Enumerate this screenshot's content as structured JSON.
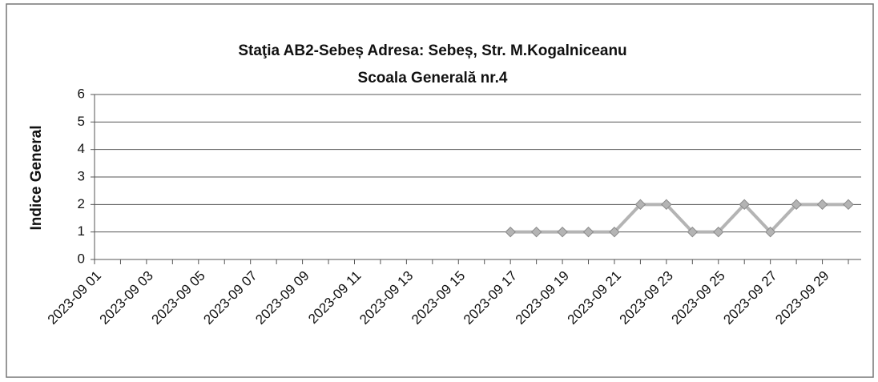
{
  "chart_data": {
    "type": "line",
    "title": [
      "Staţia AB2-Sebeș  Adresa: Sebeș,  Str. M.Kogalniceanu",
      "Scoala Generală nr.4"
    ],
    "y_label": "Indice General",
    "categories": [
      "2023-09 01",
      null,
      "2023-09 03",
      null,
      "2023-09 05",
      null,
      "2023-09 07",
      null,
      "2023-09 09",
      null,
      "2023-09 11",
      null,
      "2023-09 13",
      null,
      "2023-09 15",
      null,
      "2023-09 17",
      null,
      "2023-09 19",
      null,
      "2023-09 21",
      null,
      "2023-09 23",
      null,
      "2023-09 25",
      null,
      "2023-09 27",
      null,
      "2023-09 29",
      null
    ],
    "values": [
      null,
      null,
      null,
      null,
      null,
      null,
      null,
      null,
      null,
      null,
      null,
      null,
      null,
      null,
      null,
      null,
      1,
      1,
      1,
      1,
      1,
      2,
      2,
      1,
      1,
      2,
      1,
      2,
      2,
      2
    ],
    "color": "#b4b4b4",
    "ylim": [
      0,
      6
    ],
    "yticks": [
      0,
      1,
      2,
      3,
      4,
      5,
      6
    ],
    "grid": true
  }
}
